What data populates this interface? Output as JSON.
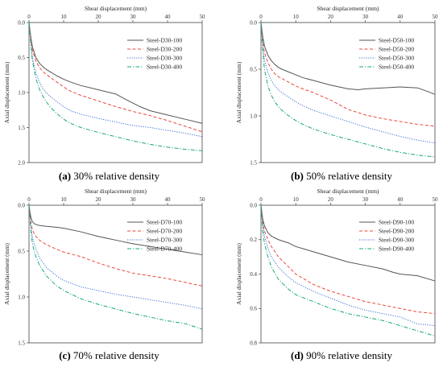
{
  "chart_data": [
    {
      "type": "line",
      "panel": "a",
      "caption_letter": "(a)",
      "caption_text": " 30% relative density",
      "xlabel": "Shear displacement (mm)",
      "ylabel": "Axial displacement (mm)",
      "xlim": [
        0,
        50
      ],
      "ylim": [
        0,
        2.0
      ],
      "y_inverted": true,
      "x_axis_position": "top",
      "xticks": [
        0,
        10,
        20,
        30,
        40,
        50
      ],
      "yticks": [
        "0.0",
        "0.5",
        "1.0",
        "1.5",
        "2.0"
      ],
      "legend_position": "top-right",
      "grid": false,
      "series": [
        {
          "name": "Steel-D30-100",
          "color": "#555555",
          "dash": "solid",
          "x": [
            0,
            0.5,
            1,
            2,
            3,
            4,
            5,
            6,
            8,
            10,
            12,
            15,
            20,
            25,
            28,
            30,
            32,
            35,
            40,
            45,
            50
          ],
          "y": [
            0,
            0.2,
            0.35,
            0.5,
            0.58,
            0.63,
            0.67,
            0.7,
            0.76,
            0.81,
            0.85,
            0.9,
            0.96,
            1.02,
            1.1,
            1.15,
            1.2,
            1.26,
            1.32,
            1.38,
            1.44
          ]
        },
        {
          "name": "Steel-D30-200",
          "color": "#e84a3a",
          "dash": "dashed",
          "x": [
            0,
            0.5,
            1,
            2,
            3,
            4,
            5,
            6,
            8,
            10,
            12,
            15,
            20,
            25,
            30,
            35,
            40,
            45,
            50
          ],
          "y": [
            0,
            0.22,
            0.4,
            0.55,
            0.64,
            0.7,
            0.74,
            0.78,
            0.85,
            0.92,
            0.98,
            1.04,
            1.12,
            1.2,
            1.27,
            1.33,
            1.4,
            1.48,
            1.56
          ]
        },
        {
          "name": "Steel-D30-300",
          "color": "#3a6fd8",
          "dash": "dotted",
          "x": [
            0,
            0.5,
            1,
            2,
            3,
            4,
            5,
            6,
            8,
            10,
            12,
            15,
            20,
            25,
            30,
            35,
            40,
            45,
            50
          ],
          "y": [
            0,
            0.28,
            0.5,
            0.72,
            0.85,
            0.94,
            1.0,
            1.05,
            1.13,
            1.2,
            1.26,
            1.31,
            1.37,
            1.42,
            1.47,
            1.5,
            1.54,
            1.58,
            1.63
          ]
        },
        {
          "name": "Steel-D30-400",
          "color": "#1aa87a",
          "dash": "dashdot",
          "x": [
            0,
            0.5,
            1,
            2,
            3,
            4,
            5,
            6,
            8,
            10,
            12,
            15,
            20,
            25,
            30,
            35,
            40,
            45,
            50
          ],
          "y": [
            0,
            0.3,
            0.55,
            0.8,
            0.95,
            1.05,
            1.13,
            1.2,
            1.3,
            1.38,
            1.44,
            1.5,
            1.57,
            1.63,
            1.69,
            1.74,
            1.78,
            1.81,
            1.83
          ]
        }
      ]
    },
    {
      "type": "line",
      "panel": "b",
      "caption_letter": "(b)",
      "caption_text": " 50% relative density",
      "xlabel": "Shear displacement (mm)",
      "ylabel": "Axial displacement (mm)",
      "xlim": [
        0,
        50
      ],
      "ylim": [
        0,
        1.5
      ],
      "y_inverted": true,
      "x_axis_position": "top",
      "xticks": [
        0,
        10,
        20,
        30,
        40,
        50
      ],
      "yticks": [
        "0.0",
        "0.5",
        "1.0",
        "1.5"
      ],
      "legend_position": "top-right",
      "grid": false,
      "series": [
        {
          "name": "Steel-D50-100",
          "color": "#555555",
          "dash": "solid",
          "x": [
            0,
            0.5,
            1,
            2,
            3,
            4,
            5,
            6,
            8,
            10,
            12,
            15,
            20,
            25,
            28,
            30,
            35,
            40,
            45,
            48,
            50
          ],
          "y": [
            0,
            0.15,
            0.25,
            0.35,
            0.41,
            0.45,
            0.48,
            0.5,
            0.53,
            0.56,
            0.59,
            0.62,
            0.67,
            0.71,
            0.72,
            0.71,
            0.7,
            0.69,
            0.7,
            0.74,
            0.77
          ]
        },
        {
          "name": "Steel-D50-200",
          "color": "#e84a3a",
          "dash": "dashed",
          "x": [
            0,
            0.5,
            1,
            2,
            3,
            4,
            5,
            6,
            8,
            10,
            12,
            15,
            20,
            25,
            30,
            35,
            40,
            45,
            50
          ],
          "y": [
            0,
            0.2,
            0.32,
            0.43,
            0.5,
            0.55,
            0.58,
            0.6,
            0.64,
            0.68,
            0.71,
            0.75,
            0.83,
            0.93,
            0.99,
            1.03,
            1.06,
            1.09,
            1.11
          ]
        },
        {
          "name": "Steel-D50-300",
          "color": "#3a6fd8",
          "dash": "dotted",
          "x": [
            0,
            0.5,
            1,
            2,
            3,
            4,
            5,
            6,
            8,
            10,
            12,
            15,
            20,
            25,
            30,
            35,
            40,
            45,
            50
          ],
          "y": [
            0,
            0.25,
            0.4,
            0.54,
            0.62,
            0.68,
            0.72,
            0.75,
            0.8,
            0.85,
            0.89,
            0.94,
            1.0,
            1.06,
            1.12,
            1.17,
            1.22,
            1.26,
            1.29
          ]
        },
        {
          "name": "Steel-D50-400",
          "color": "#1aa87a",
          "dash": "dashdot",
          "x": [
            0,
            0.5,
            1,
            2,
            3,
            4,
            5,
            6,
            8,
            10,
            12,
            15,
            20,
            25,
            30,
            35,
            40,
            45,
            50
          ],
          "y": [
            0,
            0.3,
            0.5,
            0.68,
            0.78,
            0.85,
            0.9,
            0.94,
            1.0,
            1.05,
            1.09,
            1.14,
            1.2,
            1.25,
            1.3,
            1.35,
            1.39,
            1.42,
            1.44
          ]
        }
      ]
    },
    {
      "type": "line",
      "panel": "c",
      "caption_letter": "(c)",
      "caption_text": " 70% relative density",
      "xlabel": "Shear displacement (mm)",
      "ylabel": "Axial displacement (mm)",
      "xlim": [
        0,
        50
      ],
      "ylim": [
        0,
        1.5
      ],
      "y_inverted": true,
      "x_axis_position": "top",
      "xticks": [
        0,
        10,
        20,
        30,
        40,
        50
      ],
      "yticks": [
        "0.0",
        "0.5",
        "1.0",
        "1.5"
      ],
      "legend_position": "top-right",
      "grid": false,
      "series": [
        {
          "name": "Steel-D70-100",
          "color": "#555555",
          "dash": "solid",
          "x": [
            0,
            0.3,
            0.6,
            1,
            1.5,
            2,
            3,
            5,
            8,
            10,
            15,
            20,
            25,
            30,
            35,
            40,
            45,
            50
          ],
          "y": [
            0,
            0.08,
            0.14,
            0.18,
            0.2,
            0.21,
            0.22,
            0.23,
            0.24,
            0.25,
            0.29,
            0.34,
            0.38,
            0.42,
            0.45,
            0.48,
            0.51,
            0.54
          ]
        },
        {
          "name": "Steel-D70-200",
          "color": "#e84a3a",
          "dash": "dashed",
          "x": [
            0,
            0.3,
            0.6,
            1,
            1.5,
            2,
            3,
            5,
            8,
            10,
            15,
            20,
            25,
            30,
            35,
            40,
            45,
            50
          ],
          "y": [
            0,
            0.1,
            0.2,
            0.27,
            0.31,
            0.34,
            0.38,
            0.43,
            0.48,
            0.51,
            0.56,
            0.63,
            0.69,
            0.74,
            0.77,
            0.8,
            0.84,
            0.88
          ]
        },
        {
          "name": "Steel-D70-300",
          "color": "#3a6fd8",
          "dash": "dotted",
          "x": [
            0,
            0.3,
            0.6,
            1,
            1.5,
            2,
            3,
            5,
            8,
            10,
            15,
            20,
            25,
            30,
            35,
            40,
            45,
            50
          ],
          "y": [
            0,
            0.13,
            0.25,
            0.35,
            0.42,
            0.48,
            0.57,
            0.68,
            0.77,
            0.82,
            0.89,
            0.93,
            0.97,
            1.0,
            1.03,
            1.06,
            1.09,
            1.13
          ]
        },
        {
          "name": "Steel-D70-400",
          "color": "#1aa87a",
          "dash": "dashdot",
          "x": [
            0,
            0.3,
            0.6,
            1,
            1.5,
            2,
            3,
            5,
            8,
            10,
            15,
            20,
            25,
            30,
            35,
            40,
            45,
            50
          ],
          "y": [
            0,
            0.15,
            0.3,
            0.42,
            0.5,
            0.56,
            0.65,
            0.77,
            0.88,
            0.93,
            1.02,
            1.08,
            1.13,
            1.18,
            1.22,
            1.26,
            1.29,
            1.35
          ]
        }
      ]
    },
    {
      "type": "line",
      "panel": "d",
      "caption_letter": "(d)",
      "caption_text": " 90% relative density",
      "xlabel": "Shear displacement (mm)",
      "ylabel": "Axial displacement (mm)",
      "xlim": [
        0,
        50
      ],
      "ylim": [
        0,
        0.8
      ],
      "y_inverted": true,
      "x_axis_position": "top",
      "xticks": [
        0,
        10,
        20,
        30,
        40,
        50
      ],
      "yticks": [
        "0.0",
        "0.2",
        "0.4",
        "0.6",
        "0.8"
      ],
      "legend_position": "top-right",
      "grid": false,
      "series": [
        {
          "name": "Steel-D90-100",
          "color": "#555555",
          "dash": "solid",
          "x": [
            0,
            0.5,
            1,
            2,
            3,
            5,
            8,
            10,
            15,
            20,
            25,
            30,
            35,
            38,
            40,
            45,
            50
          ],
          "y": [
            0,
            0.08,
            0.12,
            0.16,
            0.18,
            0.2,
            0.22,
            0.24,
            0.27,
            0.3,
            0.33,
            0.35,
            0.37,
            0.39,
            0.4,
            0.41,
            0.44
          ]
        },
        {
          "name": "Steel-D90-200",
          "color": "#e84a3a",
          "dash": "dashed",
          "x": [
            0,
            0.5,
            1,
            2,
            3,
            5,
            8,
            10,
            15,
            20,
            25,
            30,
            35,
            40,
            45,
            50
          ],
          "y": [
            0,
            0.1,
            0.15,
            0.2,
            0.24,
            0.3,
            0.36,
            0.4,
            0.46,
            0.5,
            0.53,
            0.56,
            0.58,
            0.6,
            0.62,
            0.63
          ]
        },
        {
          "name": "Steel-D90-300",
          "color": "#3a6fd8",
          "dash": "dotted",
          "x": [
            0,
            0.5,
            1,
            2,
            3,
            5,
            8,
            10,
            15,
            20,
            25,
            30,
            35,
            40,
            45,
            50
          ],
          "y": [
            0,
            0.12,
            0.18,
            0.25,
            0.3,
            0.36,
            0.42,
            0.45,
            0.5,
            0.54,
            0.58,
            0.61,
            0.63,
            0.65,
            0.69,
            0.7
          ]
        },
        {
          "name": "Steel-D90-400",
          "color": "#1aa87a",
          "dash": "dashdot",
          "x": [
            0,
            0.5,
            1,
            2,
            3,
            5,
            8,
            10,
            15,
            20,
            25,
            30,
            35,
            40,
            45,
            50
          ],
          "y": [
            0,
            0.15,
            0.22,
            0.3,
            0.36,
            0.43,
            0.49,
            0.52,
            0.56,
            0.6,
            0.63,
            0.65,
            0.67,
            0.7,
            0.73,
            0.76
          ]
        }
      ]
    }
  ]
}
